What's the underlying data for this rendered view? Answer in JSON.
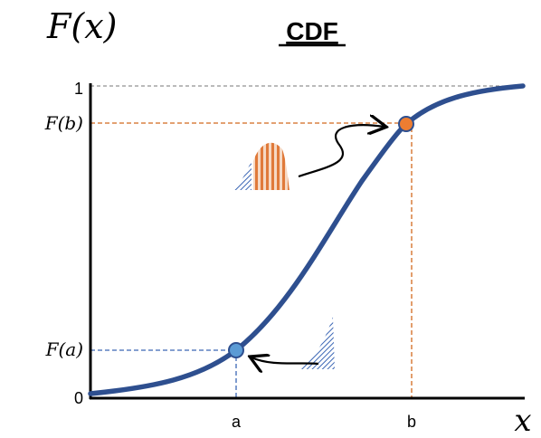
{
  "header": {
    "title": "CDF",
    "y_label": "F(x)",
    "x_label": "x"
  },
  "y_axis": {
    "top": "1",
    "fb": "F(b)",
    "fa": "F(a)",
    "bottom": "0"
  },
  "x_axis": {
    "a": "a",
    "b": "b"
  }
}
